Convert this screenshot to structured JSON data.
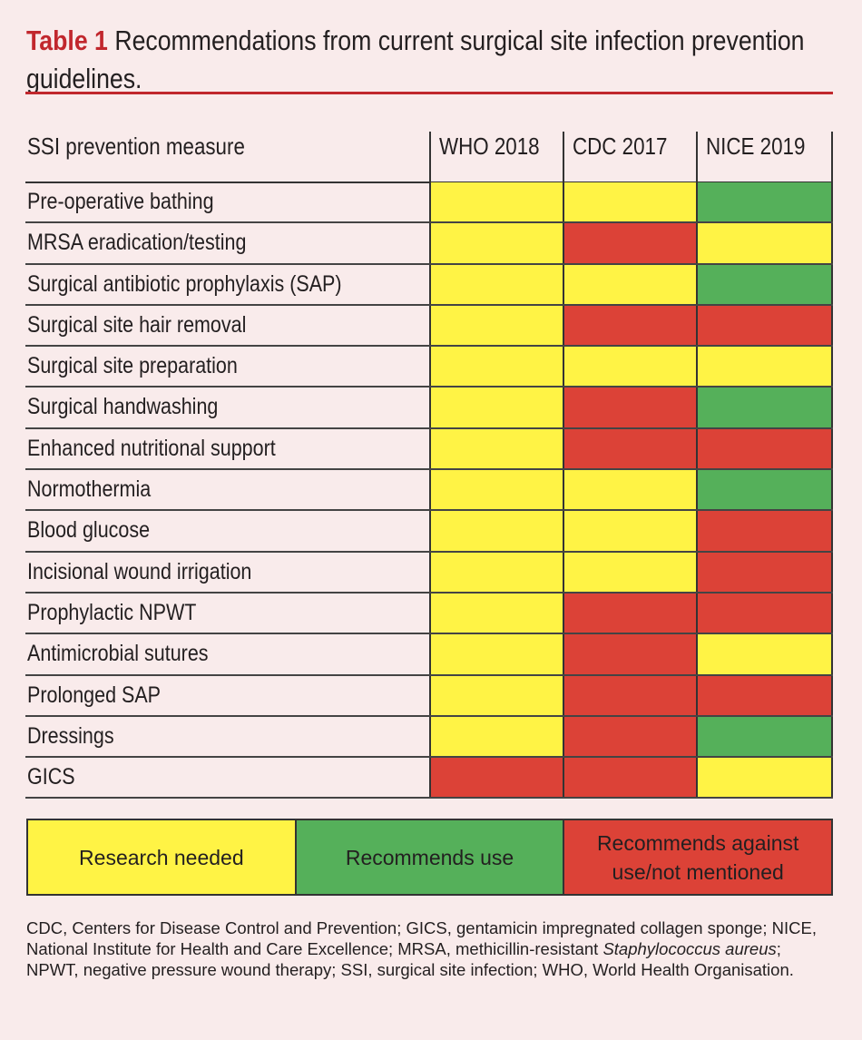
{
  "title": {
    "label": "Table 1",
    "text": "Recommendations from current surgical site infection prevention guidelines."
  },
  "table": {
    "header": {
      "measure": "SSI prevention measure",
      "columns": [
        "WHO 2018",
        "CDC 2017",
        "NICE 2019"
      ]
    },
    "rows": [
      {
        "name": "Pre-operative bathing",
        "values": [
          "Y",
          "Y",
          "G"
        ]
      },
      {
        "name": "MRSA eradication/testing",
        "values": [
          "Y",
          "R",
          "Y"
        ]
      },
      {
        "name": "Surgical antibiotic prophylaxis (SAP)",
        "values": [
          "Y",
          "Y",
          "G"
        ]
      },
      {
        "name": "Surgical site hair removal",
        "values": [
          "Y",
          "R",
          "R"
        ]
      },
      {
        "name": "Surgical site preparation",
        "values": [
          "Y",
          "Y",
          "Y"
        ]
      },
      {
        "name": "Surgical handwashing",
        "values": [
          "Y",
          "R",
          "G"
        ]
      },
      {
        "name": "Enhanced nutritional support",
        "values": [
          "Y",
          "R",
          "R"
        ]
      },
      {
        "name": "Normothermia",
        "values": [
          "Y",
          "Y",
          "G"
        ]
      },
      {
        "name": "Blood glucose",
        "values": [
          "Y",
          "Y",
          "R"
        ]
      },
      {
        "name": "Incisional wound irrigation",
        "values": [
          "Y",
          "Y",
          "R"
        ]
      },
      {
        "name": "Prophylactic NPWT",
        "values": [
          "Y",
          "R",
          "R"
        ]
      },
      {
        "name": "Antimicrobial sutures",
        "values": [
          "Y",
          "R",
          "Y"
        ]
      },
      {
        "name": "Prolonged SAP",
        "values": [
          "Y",
          "R",
          "R"
        ]
      },
      {
        "name": "Dressings",
        "values": [
          "Y",
          "R",
          "G"
        ]
      },
      {
        "name": "GICS",
        "values": [
          "R",
          "R",
          "Y"
        ]
      }
    ]
  },
  "legend": [
    {
      "code": "Y",
      "label": "Research needed",
      "color": "#fff345"
    },
    {
      "code": "G",
      "label": "Recommends use",
      "color": "#55b05a"
    },
    {
      "code": "R",
      "label": "Recommends against use/not mentioned",
      "color": "#dc4237"
    }
  ],
  "footnote": {
    "before": "CDC, Centers for Disease Control and Prevention; GICS, gentamicin impregnated collagen sponge; NICE, National Institute for Health and Care Excellence; MRSA, methicillin-resistant ",
    "italic": "Staphylococcus aureus",
    "after": "; NPWT, negative pressure wound therapy; SSI, surgical site infection; WHO, World Health Organisation."
  }
}
